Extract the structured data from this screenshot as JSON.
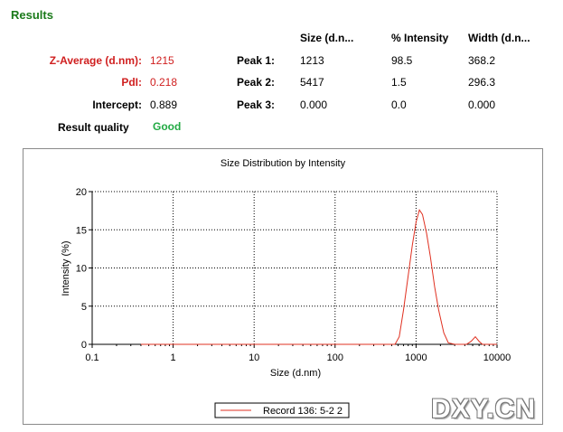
{
  "results": {
    "title": "Results",
    "z_average_label": "Z-Average (d.nm):",
    "z_average_value": "1215",
    "pdi_label": "PdI:",
    "pdi_value": "0.218",
    "intercept_label": "Intercept:",
    "intercept_value": "0.889",
    "quality_label": "Result quality",
    "quality_value": "Good"
  },
  "peaks_table": {
    "headers": [
      "Size (d.n...",
      "% Intensity",
      "Width (d.n..."
    ],
    "rows": [
      {
        "label": "Peak 1:",
        "size": "1213",
        "intensity": "98.5",
        "width": "368.2"
      },
      {
        "label": "Peak 2:",
        "size": "5417",
        "intensity": "1.5",
        "width": "296.3"
      },
      {
        "label": "Peak 3:",
        "size": "0.000",
        "intensity": "0.0",
        "width": "0.000"
      }
    ]
  },
  "colors": {
    "accent_green": "#1a7a1a",
    "label_red": "#d02020",
    "good_green": "#22aa44",
    "series_red": "#e03020"
  },
  "watermark": "DXY.CN",
  "chart_data": {
    "type": "line",
    "title": "Size Distribution by Intensity",
    "xlabel": "Size (d.nm)",
    "ylabel": "Intensity (%)",
    "x_scale": "log",
    "xlim": [
      0.1,
      10000
    ],
    "ylim": [
      0,
      20
    ],
    "x_ticks": [
      "0.1",
      "1",
      "10",
      "100",
      "1000",
      "10000"
    ],
    "y_ticks": [
      "0",
      "5",
      "10",
      "15",
      "20"
    ],
    "grid": "dotted",
    "legend_position": "bottom-center",
    "series": [
      {
        "name": "Record 136: 5-2 2",
        "color": "#e03020",
        "x": [
          0.4,
          1,
          10,
          100,
          400,
          550,
          620,
          700,
          800,
          900,
          1000,
          1100,
          1200,
          1350,
          1500,
          1700,
          1900,
          2200,
          2500,
          3000,
          3500,
          4200,
          4800,
          5400,
          6000,
          6600,
          7000,
          8000,
          9000,
          10000
        ],
        "y": [
          0,
          0,
          0,
          0,
          0,
          0,
          1.0,
          4.5,
          9.0,
          13.0,
          16.0,
          17.6,
          17.0,
          14.5,
          11.5,
          7.5,
          4.5,
          1.5,
          0.2,
          0,
          0,
          0,
          0.4,
          1.0,
          0.4,
          0,
          0,
          0,
          0,
          0
        ]
      }
    ]
  }
}
